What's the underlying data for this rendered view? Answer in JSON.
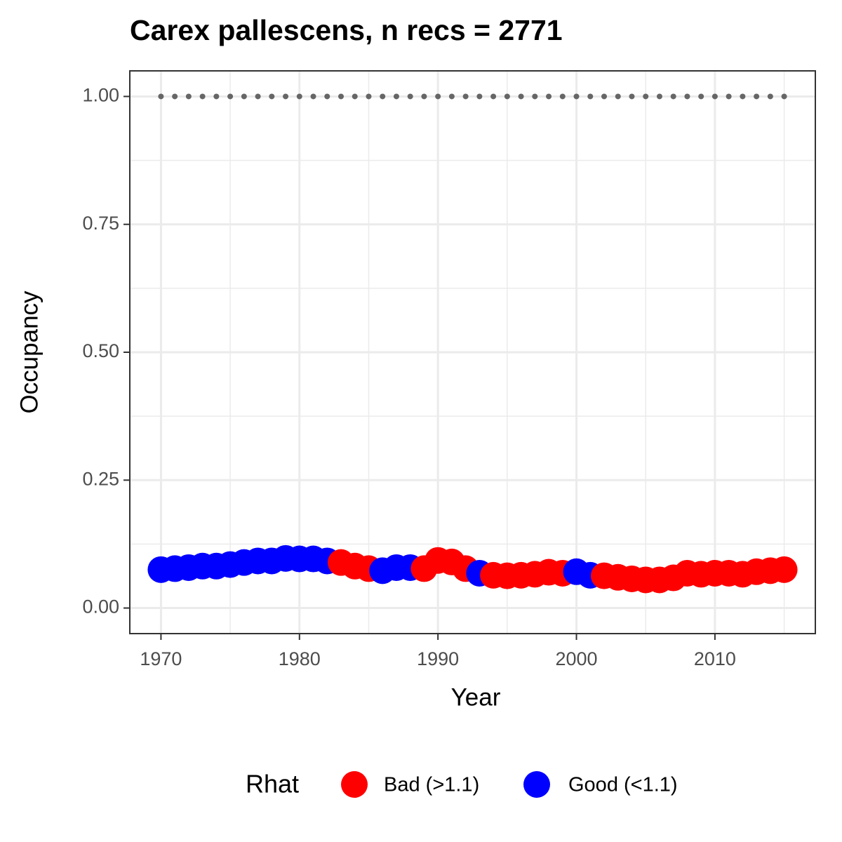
{
  "chart_data": {
    "type": "scatter",
    "title": "Carex pallescens, n recs = 2771",
    "x_label": "Year",
    "y_label": "Occupancy",
    "legend_title": "Rhat",
    "legend_position": "bottom",
    "x": [
      1970,
      1971,
      1972,
      1973,
      1974,
      1975,
      1976,
      1977,
      1978,
      1979,
      1980,
      1981,
      1982,
      1983,
      1984,
      1985,
      1986,
      1987,
      1988,
      1989,
      1990,
      1991,
      1992,
      1993,
      1994,
      1995,
      1996,
      1997,
      1998,
      1999,
      2000,
      2001,
      2002,
      2003,
      2004,
      2005,
      2006,
      2007,
      2008,
      2009,
      2010,
      2011,
      2012,
      2013,
      2014,
      2015
    ],
    "series": [
      {
        "name": "Bad (>1.1)",
        "color": "#ff0000",
        "values": [
          null,
          null,
          null,
          null,
          null,
          null,
          null,
          null,
          null,
          null,
          null,
          null,
          null,
          0.089,
          0.082,
          0.077,
          null,
          null,
          null,
          0.077,
          0.093,
          0.09,
          0.077,
          null,
          0.064,
          0.063,
          0.064,
          0.066,
          0.07,
          0.068,
          null,
          null,
          0.063,
          0.06,
          0.057,
          0.055,
          0.055,
          0.059,
          0.068,
          0.066,
          0.068,
          0.068,
          0.066,
          0.071,
          0.073,
          0.075
        ]
      },
      {
        "name": "Good (<1.1)",
        "color": "#0000ff",
        "values": [
          0.075,
          0.077,
          0.079,
          0.082,
          0.082,
          0.085,
          0.089,
          0.092,
          0.092,
          0.097,
          0.096,
          0.096,
          0.092,
          null,
          null,
          null,
          0.073,
          0.079,
          0.079,
          null,
          null,
          null,
          null,
          0.068,
          null,
          null,
          null,
          null,
          null,
          null,
          0.071,
          0.064,
          null,
          null,
          null,
          null,
          null,
          null,
          null,
          null,
          null,
          null,
          null,
          null,
          null,
          null
        ]
      }
    ],
    "reference": {
      "color": "#666666",
      "values": [
        1,
        1,
        1,
        1,
        1,
        1,
        1,
        1,
        1,
        1,
        1,
        1,
        1,
        1,
        1,
        1,
        1,
        1,
        1,
        1,
        1,
        1,
        1,
        1,
        1,
        1,
        1,
        1,
        1,
        1,
        1,
        1,
        1,
        1,
        1,
        1,
        1,
        1,
        1,
        1,
        1,
        1,
        1,
        1,
        1,
        1
      ]
    },
    "xlim": [
      1967.75,
      2017.25
    ],
    "xticks": [
      1970,
      1980,
      1990,
      2000,
      2010
    ],
    "minor_xticks": [
      1975,
      1985,
      1995,
      2005,
      2015
    ],
    "ylim": [
      -0.05,
      1.05
    ],
    "yticks": [
      {
        "value": 0,
        "label": "0.00"
      },
      {
        "value": 0.25,
        "label": "0.25"
      },
      {
        "value": 0.5,
        "label": "0.50"
      },
      {
        "value": 0.75,
        "label": "0.75"
      },
      {
        "value": 1,
        "label": "1.00"
      }
    ],
    "minor_yticks": [
      0.125,
      0.375,
      0.625,
      0.875
    ],
    "grid": true
  }
}
